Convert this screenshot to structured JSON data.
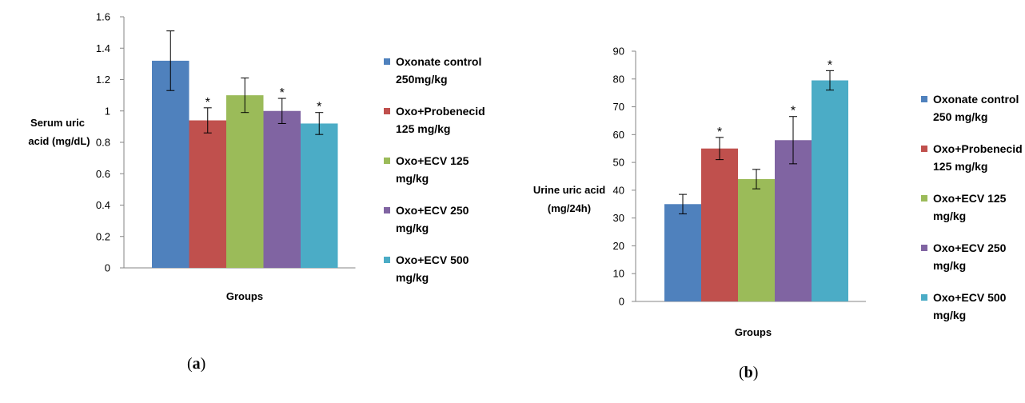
{
  "chart_data": [
    {
      "type": "bar",
      "panel": "a",
      "categories": [
        "Oxonate control 250mg/kg",
        "Oxo+Probenecid 125 mg/kg",
        "Oxo+ECV 125 mg/kg",
        "Oxo+ECV 250 mg/kg",
        "Oxo+ECV 500 mg/kg"
      ],
      "values": [
        1.32,
        0.94,
        1.1,
        1.0,
        0.92
      ],
      "errors": [
        0.19,
        0.08,
        0.11,
        0.08,
        0.07
      ],
      "significant": [
        false,
        true,
        false,
        true,
        true
      ],
      "ylim": [
        0,
        1.6
      ],
      "yticks": [
        "0",
        "0.2",
        "0.4",
        "0.6",
        "0.8",
        "1",
        "1.2",
        "1.4",
        "1.6"
      ],
      "ylabel": [
        "Serum uric",
        "acid (mg/dL)"
      ],
      "xlabel": "Groups",
      "legend": [
        [
          "Oxonate control",
          "250mg/kg"
        ],
        [
          "Oxo+Probenecid",
          "125 mg/kg"
        ],
        [
          "Oxo+ECV 125",
          "mg/kg"
        ],
        [
          "Oxo+ECV 250",
          "mg/kg"
        ],
        [
          "Oxo+ECV 500",
          "mg/kg"
        ]
      ],
      "legend_position": "right",
      "grid": false
    },
    {
      "type": "bar",
      "panel": "b",
      "categories": [
        "Oxonate control 250 mg/kg",
        "Oxo+Probenecid 125 mg/kg",
        "Oxo+ECV 125 mg/kg",
        "Oxo+ECV 250 mg/kg",
        "Oxo+ECV 500 mg/kg"
      ],
      "values": [
        35,
        55,
        44,
        58,
        79.5
      ],
      "errors": [
        3.5,
        4,
        3.5,
        8.5,
        3.5
      ],
      "significant": [
        false,
        true,
        false,
        true,
        true
      ],
      "ylim": [
        0,
        90
      ],
      "yticks": [
        "0",
        "10",
        "20",
        "30",
        "40",
        "50",
        "60",
        "70",
        "80",
        "90"
      ],
      "ylabel": [
        "Urine uric acid",
        "(mg/24h)"
      ],
      "xlabel": "Groups",
      "legend": [
        [
          "Oxonate control",
          "250 mg/kg"
        ],
        [
          "Oxo+Probenecid",
          "125 mg/kg"
        ],
        [
          "Oxo+ECV 125",
          "mg/kg"
        ],
        [
          "Oxo+ECV 250",
          "mg/kg"
        ],
        [
          "Oxo+ECV 500",
          "mg/kg"
        ]
      ],
      "legend_position": "right",
      "grid": false
    }
  ],
  "colors": [
    "#4f81bd",
    "#c0504d",
    "#9bbb59",
    "#8064a2",
    "#4bacc6"
  ],
  "significance_marker": "*",
  "panel_labels": {
    "a_open": "(",
    "a_letter": "a",
    "a_close": ")",
    "b_open": "(",
    "b_letter": "b",
    "b_close": ")"
  }
}
